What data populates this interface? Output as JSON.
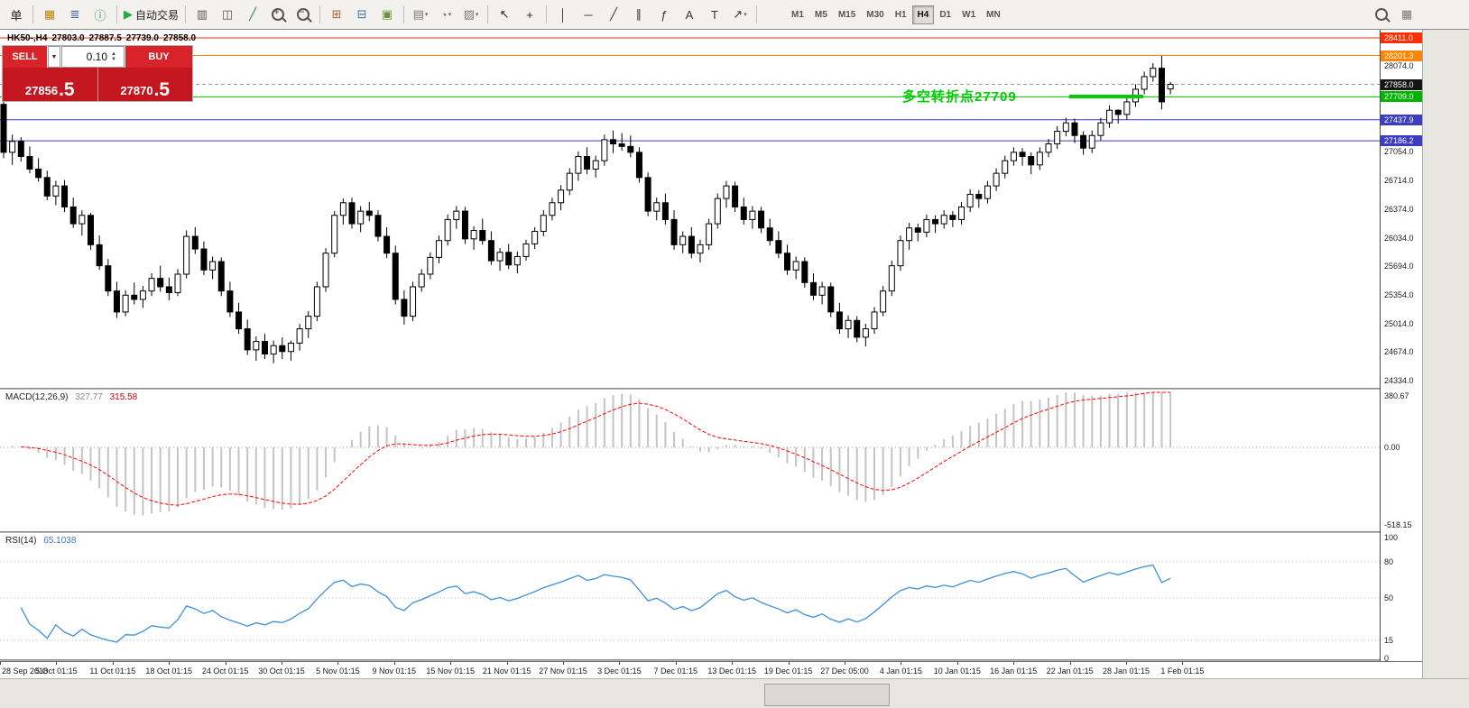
{
  "colors": {
    "bull": "#ffffff",
    "bear": "#000000",
    "wick": "#000000",
    "macd_hist": "#c4c4c4",
    "macd_signal": "#ff0000",
    "rsi_line": "#3f8fd8",
    "level_dotted": "#b8b8b8",
    "annotation": "#00cc00",
    "trade_red": "#d8232a",
    "trade_deep": "#c3161f"
  },
  "toolbar": {
    "dropdown_glyph": "▾",
    "active_timeframe": "H4",
    "timeframes": [
      "M1",
      "M5",
      "M15",
      "M30",
      "H1",
      "H4",
      "D1",
      "W1",
      "MN"
    ],
    "items": [
      {
        "type": "btn",
        "name": "new-order-partial-button",
        "glyph": "单",
        "color": "#222"
      },
      {
        "type": "sep"
      },
      {
        "type": "btn",
        "name": "profiles-icon",
        "glyph": "▦",
        "color": "#b8860b"
      },
      {
        "type": "btn",
        "name": "market-watch-icon",
        "glyph": "≣",
        "color": "#4169aa"
      },
      {
        "type": "btn",
        "name": "data-window-icon",
        "glyph": "ⓘ",
        "color": "#2e8b57"
      },
      {
        "type": "sep"
      },
      {
        "type": "btn",
        "name": "autotrading-button",
        "glyph": "▶",
        "color": "#1fae3f",
        "label": "自动交易"
      },
      {
        "type": "sep"
      },
      {
        "type": "btn",
        "name": "bar-chart-icon",
        "glyph": "▥",
        "color": "#555555"
      },
      {
        "type": "btn",
        "name": "candlestick-chart-icon",
        "glyph": "◫",
        "color": "#555555"
      },
      {
        "type": "btn",
        "name": "line-chart-icon",
        "glyph": "╱",
        "color": "#2e7d32"
      },
      {
        "type": "btn",
        "name": "zoom-in-icon",
        "css": "mag",
        "overlay": "+"
      },
      {
        "type": "btn",
        "name": "zoom-out-icon",
        "css": "mag",
        "overlay": "−"
      },
      {
        "type": "sep"
      },
      {
        "type": "btn",
        "name": "tile-windows-icon",
        "glyph": "⊞",
        "color": "#b5622a"
      },
      {
        "type": "btn",
        "name": "arrange-windows-icon",
        "glyph": "⊟",
        "color": "#3a6f9e"
      },
      {
        "type": "btn",
        "name": "cascade-windows-icon",
        "glyph": "▣",
        "color": "#6a8f3a"
      },
      {
        "type": "sep"
      },
      {
        "type": "btn",
        "name": "new-chart-icon",
        "glyph": "▤",
        "color": "#777777",
        "dropdown": true
      },
      {
        "type": "btn",
        "name": "periods-icon",
        "glyph": "◔",
        "color": "#777777",
        "dropdown": true
      },
      {
        "type": "btn",
        "name": "templates-icon",
        "glyph": "▨",
        "color": "#777777",
        "dropdown": true
      },
      {
        "type": "sep"
      },
      {
        "type": "btn",
        "name": "cursor-icon",
        "glyph": "↖",
        "color": "#222222"
      },
      {
        "type": "btn",
        "name": "crosshair-icon",
        "glyph": "+",
        "color": "#222222"
      },
      {
        "type": "sep"
      },
      {
        "type": "btn",
        "name": "vertical-line-icon",
        "glyph": "│",
        "color": "#333333"
      },
      {
        "type": "btn",
        "name": "horizontal-line-icon",
        "glyph": "─",
        "color": "#333333"
      },
      {
        "type": "btn",
        "name": "trendline-icon",
        "glyph": "╱",
        "color": "#333333"
      },
      {
        "type": "btn",
        "name": "channel-icon",
        "glyph": "∥",
        "color": "#333333"
      },
      {
        "type": "btn",
        "name": "fibonacci-icon",
        "glyph": "ƒ",
        "color": "#333333"
      },
      {
        "type": "btn",
        "name": "text-icon",
        "glyph": "A",
        "color": "#333333"
      },
      {
        "type": "btn",
        "name": "label-icon",
        "glyph": "T",
        "color": "#333333"
      },
      {
        "type": "btn",
        "name": "shapes-icon",
        "glyph": "↗",
        "color": "#333333",
        "dropdown": true
      },
      {
        "type": "sep"
      },
      {
        "type": "tf-group"
      },
      {
        "type": "spacer"
      },
      {
        "type": "btn",
        "name": "search-icon",
        "css": "mag"
      },
      {
        "type": "btn",
        "name": "chart-window-icon",
        "glyph": "▦",
        "color": "#777777"
      }
    ]
  },
  "trade_panel": {
    "sell_label": "SELL",
    "buy_label": "BUY",
    "volume": "0.10",
    "dropdown_glyph": "▼",
    "spin_up": "▲",
    "spin_down": "▼",
    "sell_price_small": "27856",
    "sell_price_big": ".5",
    "buy_price_small": "27870",
    "buy_price_big": ".5"
  },
  "chart_data": {
    "type": "candlestick",
    "header": {
      "symbol_period": "HK50-,H4",
      "open": "27803.0",
      "high": "27887.5",
      "low": "27739.0",
      "close": "27858.0"
    },
    "x_labels": [
      "28 Sep 2018",
      "5 Oct 01:15",
      "11 Oct 01:15",
      "18 Oct 01:15",
      "24 Oct 01:15",
      "30 Oct 01:15",
      "5 Nov 01:15",
      "9 Nov 01:15",
      "15 Nov 01:15",
      "21 Nov 01:15",
      "27 Nov 01:15",
      "3 Dec 01:15",
      "7 Dec 01:15",
      "13 Dec 01:15",
      "19 Dec 01:15",
      "27 Dec 05:00",
      "4 Jan 01:15",
      "10 Jan 01:15",
      "16 Jan 01:15",
      "22 Jan 01:15",
      "28 Jan 01:15",
      "1 Feb 01:15"
    ],
    "price_axis_labels": [
      "28074.0",
      "27054.0",
      "26714.0",
      "26374.0",
      "26034.0",
      "25694.0",
      "25354.0",
      "25014.0",
      "24674.0",
      "24334.0"
    ],
    "hlines": [
      {
        "price_label": "28411.0",
        "color": "#ff2f00",
        "label_bg": "#ff2f00"
      },
      {
        "price_label": "28201.3",
        "color": "#ff8400",
        "label_bg": "#ff8400"
      },
      {
        "price_label": "27858.0",
        "color": "#9a9a9a",
        "label_bg": "#141414",
        "dashed": true
      },
      {
        "price_label": "27709.0",
        "color": "#00c400",
        "label_bg": "#00b400"
      },
      {
        "price_label": "27437.9",
        "color": "#3a3ac8",
        "label_bg": "#3c3cc0"
      },
      {
        "price_label": "27186.2",
        "color": "#3a3ac8",
        "label_bg": "#3c3cc0"
      }
    ],
    "macd": {
      "label": "MACD(12,26,9)",
      "value_main": "327.77",
      "value_signal": "315.58",
      "axis_labels": [
        "380.67",
        "0.00",
        "-518.15"
      ]
    },
    "rsi": {
      "label": "RSI(14)",
      "value": "65.1038",
      "axis_labels": [
        "100",
        "80",
        "50",
        "15",
        "0"
      ],
      "levels": [
        80,
        50,
        15
      ]
    },
    "annotation": {
      "text": "多空转折点27709"
    },
    "ohlc": [
      [
        27620,
        27700,
        26980,
        27050
      ],
      [
        27050,
        27260,
        26900,
        27180
      ],
      [
        27180,
        27230,
        26940,
        27000
      ],
      [
        27000,
        27120,
        26800,
        26850
      ],
      [
        26850,
        26980,
        26700,
        26750
      ],
      [
        26750,
        26830,
        26480,
        26530
      ],
      [
        26530,
        26710,
        26420,
        26650
      ],
      [
        26650,
        26720,
        26340,
        26400
      ],
      [
        26400,
        26510,
        26150,
        26200
      ],
      [
        26200,
        26360,
        26060,
        26300
      ],
      [
        26300,
        26330,
        25890,
        25950
      ],
      [
        25950,
        26060,
        25650,
        25700
      ],
      [
        25700,
        25780,
        25340,
        25400
      ],
      [
        25400,
        25510,
        25080,
        25150
      ],
      [
        25150,
        25410,
        25100,
        25350
      ],
      [
        25350,
        25500,
        25240,
        25300
      ],
      [
        25300,
        25460,
        25200,
        25400
      ],
      [
        25400,
        25610,
        25340,
        25550
      ],
      [
        25550,
        25700,
        25390,
        25450
      ],
      [
        25450,
        25560,
        25290,
        25380
      ],
      [
        25380,
        25660,
        25340,
        25600
      ],
      [
        25600,
        26120,
        25550,
        26050
      ],
      [
        26050,
        26160,
        25840,
        25900
      ],
      [
        25900,
        25990,
        25590,
        25650
      ],
      [
        25650,
        25810,
        25540,
        25750
      ],
      [
        25750,
        25800,
        25340,
        25400
      ],
      [
        25400,
        25510,
        25090,
        25150
      ],
      [
        25150,
        25260,
        24890,
        24950
      ],
      [
        24950,
        25060,
        24640,
        24700
      ],
      [
        24700,
        24860,
        24570,
        24800
      ],
      [
        24800,
        24890,
        24590,
        24650
      ],
      [
        24650,
        24810,
        24540,
        24750
      ],
      [
        24750,
        24850,
        24590,
        24680
      ],
      [
        24680,
        24810,
        24570,
        24780
      ],
      [
        24780,
        25010,
        24690,
        24950
      ],
      [
        24950,
        25160,
        24840,
        25100
      ],
      [
        25100,
        25510,
        25040,
        25450
      ],
      [
        25450,
        25910,
        25390,
        25850
      ],
      [
        25850,
        26350,
        25800,
        26300
      ],
      [
        26300,
        26500,
        26190,
        26450
      ],
      [
        26450,
        26510,
        26140,
        26200
      ],
      [
        26200,
        26410,
        26100,
        26350
      ],
      [
        26350,
        26460,
        26230,
        26300
      ],
      [
        26300,
        26360,
        25990,
        26050
      ],
      [
        26050,
        26160,
        25790,
        25850
      ],
      [
        25850,
        25940,
        25240,
        25300
      ],
      [
        25300,
        25410,
        25000,
        25100
      ],
      [
        25100,
        25510,
        25040,
        25450
      ],
      [
        25450,
        25660,
        25390,
        25600
      ],
      [
        25600,
        25860,
        25540,
        25800
      ],
      [
        25800,
        26060,
        25730,
        26000
      ],
      [
        26000,
        26310,
        25940,
        26250
      ],
      [
        26250,
        26410,
        26140,
        26350
      ],
      [
        26350,
        26400,
        25960,
        26020
      ],
      [
        26020,
        26170,
        25890,
        26120
      ],
      [
        26120,
        26260,
        25950,
        26000
      ],
      [
        26000,
        26110,
        25710,
        25760
      ],
      [
        25760,
        25910,
        25640,
        25860
      ],
      [
        25860,
        25960,
        25660,
        25710
      ],
      [
        25710,
        25870,
        25610,
        25810
      ],
      [
        25810,
        26010,
        25760,
        25960
      ],
      [
        25960,
        26160,
        25900,
        26110
      ],
      [
        26110,
        26360,
        26050,
        26300
      ],
      [
        26300,
        26510,
        26240,
        26450
      ],
      [
        26450,
        26660,
        26360,
        26600
      ],
      [
        26600,
        26860,
        26540,
        26800
      ],
      [
        26800,
        27060,
        26710,
        27000
      ],
      [
        27000,
        27110,
        26790,
        26850
      ],
      [
        26850,
        27010,
        26750,
        26950
      ],
      [
        26950,
        27260,
        26890,
        27200
      ],
      [
        27200,
        27310,
        27040,
        27150
      ],
      [
        27150,
        27280,
        27070,
        27120
      ],
      [
        27120,
        27250,
        26990,
        27050
      ],
      [
        27050,
        27110,
        26690,
        26750
      ],
      [
        26750,
        26810,
        26290,
        26350
      ],
      [
        26350,
        26510,
        26240,
        26450
      ],
      [
        26450,
        26560,
        26190,
        26250
      ],
      [
        26250,
        26360,
        25890,
        25950
      ],
      [
        25950,
        26110,
        25850,
        26050
      ],
      [
        26050,
        26160,
        25790,
        25850
      ],
      [
        25850,
        26010,
        25740,
        25950
      ],
      [
        25950,
        26260,
        25890,
        26200
      ],
      [
        26200,
        26560,
        26140,
        26500
      ],
      [
        26500,
        26710,
        26390,
        26650
      ],
      [
        26650,
        26700,
        26340,
        26400
      ],
      [
        26400,
        26510,
        26190,
        26250
      ],
      [
        26250,
        26410,
        26140,
        26350
      ],
      [
        26350,
        26400,
        26090,
        26150
      ],
      [
        26150,
        26260,
        25940,
        26000
      ],
      [
        26000,
        26110,
        25790,
        25850
      ],
      [
        25850,
        25950,
        25590,
        25650
      ],
      [
        25650,
        25810,
        25540,
        25750
      ],
      [
        25750,
        25800,
        25440,
        25500
      ],
      [
        25500,
        25610,
        25290,
        25350
      ],
      [
        25350,
        25510,
        25240,
        25450
      ],
      [
        25450,
        25500,
        25090,
        25150
      ],
      [
        25150,
        25260,
        24890,
        24950
      ],
      [
        24950,
        25110,
        24840,
        25050
      ],
      [
        25050,
        25100,
        24790,
        24850
      ],
      [
        24850,
        25010,
        24740,
        24950
      ],
      [
        24950,
        25210,
        24890,
        25150
      ],
      [
        25150,
        25460,
        25100,
        25400
      ],
      [
        25400,
        25760,
        25340,
        25700
      ],
      [
        25700,
        26060,
        25640,
        26000
      ],
      [
        26000,
        26210,
        25890,
        26150
      ],
      [
        26150,
        26200,
        25990,
        26100
      ],
      [
        26100,
        26310,
        26040,
        26250
      ],
      [
        26250,
        26300,
        26090,
        26200
      ],
      [
        26200,
        26360,
        26140,
        26300
      ],
      [
        26300,
        26350,
        26160,
        26250
      ],
      [
        26250,
        26460,
        26190,
        26400
      ],
      [
        26400,
        26610,
        26340,
        26550
      ],
      [
        26550,
        26600,
        26390,
        26500
      ],
      [
        26500,
        26710,
        26440,
        26650
      ],
      [
        26650,
        26860,
        26590,
        26800
      ],
      [
        26800,
        27010,
        26740,
        26950
      ],
      [
        26950,
        27110,
        26890,
        27050
      ],
      [
        27050,
        27100,
        26890,
        27000
      ],
      [
        27000,
        27050,
        26790,
        26900
      ],
      [
        26900,
        27110,
        26840,
        27050
      ],
      [
        27050,
        27210,
        26990,
        27150
      ],
      [
        27150,
        27360,
        27090,
        27300
      ],
      [
        27300,
        27460,
        27240,
        27400
      ],
      [
        27400,
        27450,
        27160,
        27250
      ],
      [
        27250,
        27300,
        27020,
        27100
      ],
      [
        27100,
        27310,
        27040,
        27250
      ],
      [
        27250,
        27460,
        27190,
        27400
      ],
      [
        27400,
        27610,
        27340,
        27550
      ],
      [
        27550,
        27560,
        27390,
        27500
      ],
      [
        27500,
        27710,
        27440,
        27650
      ],
      [
        27650,
        27860,
        27590,
        27800
      ],
      [
        27800,
        28010,
        27740,
        27950
      ],
      [
        27950,
        28110,
        27890,
        28050
      ],
      [
        28050,
        28195,
        27560,
        27650
      ],
      [
        27803,
        27887.5,
        27739,
        27858
      ]
    ]
  }
}
